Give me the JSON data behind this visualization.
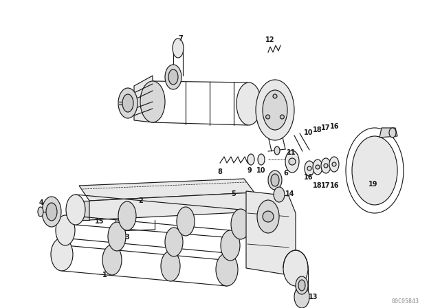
{
  "bg_color": "#ffffff",
  "line_color": "#1a1a1a",
  "fig_width": 6.4,
  "fig_height": 4.48,
  "dpi": 100,
  "watermark": "00C05843",
  "lw": 0.85
}
